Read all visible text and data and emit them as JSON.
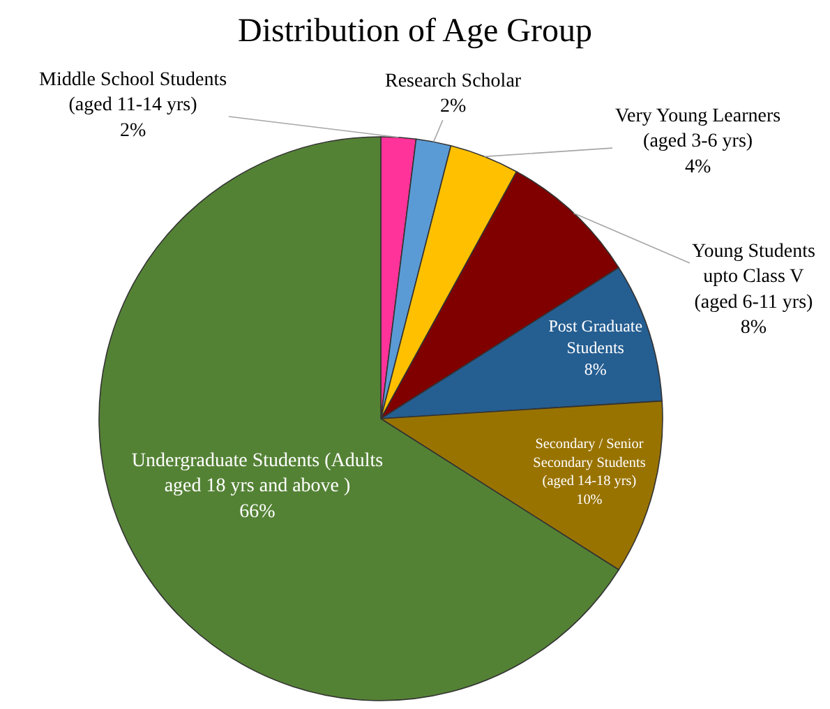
{
  "chart_data": {
    "type": "pie",
    "title": "Distribution of Age Group",
    "categories": [
      "Middle School Students (aged 11-14 yrs)",
      "Research Scholar",
      "Very Young Learners (aged 3-6 yrs)",
      "Young Students upto Class V (aged 6-11 yrs)",
      "Post Graduate Students",
      "Secondary / Senior Secondary Students (aged 14-18 yrs)",
      "Undergraduate Students (Adults aged 18 yrs and above )"
    ],
    "values": [
      2,
      2,
      4,
      8,
      8,
      10,
      66
    ],
    "value_labels": [
      "2%",
      "2%",
      "4%",
      "8%",
      "8%",
      "10%",
      "66%"
    ],
    "colors": [
      "#ff3399",
      "#5b9bd5",
      "#ffc000",
      "#800000",
      "#255e91",
      "#997300",
      "#548235"
    ],
    "legend": false
  }
}
